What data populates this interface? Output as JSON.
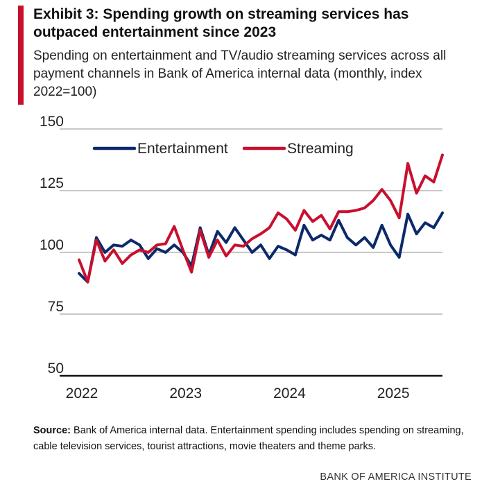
{
  "header": {
    "title": "Exhibit 3: Spending growth on streaming services has outpaced entertainment since 2023",
    "subtitle": "Spending on entertainment and TV/audio streaming services across all payment channels in Bank of America internal data (monthly, index 2022=100)"
  },
  "source": {
    "label": "Source:",
    "text": " Bank of America internal data. Entertainment spending includes spending on streaming, cable television services, tourist attractions, movie theaters and theme parks."
  },
  "footer": {
    "brand": "BANK OF AMERICA INSTITUTE"
  },
  "colors": {
    "accent": "#c8102e",
    "entertainment": "#0b2a6b",
    "streaming": "#c8102e",
    "grid": "#c8c8c8"
  },
  "chart_data": {
    "type": "line",
    "x_start": "2022-01",
    "x_ticks": [
      "2022",
      "2023",
      "2024",
      "2025"
    ],
    "y_ticks": [
      50,
      75,
      100,
      125,
      150
    ],
    "ylim": [
      50,
      150
    ],
    "legend": "top-left",
    "grid": true,
    "series": [
      {
        "name": "Entertainment",
        "color": "#0b2a6b",
        "values": [
          91.5,
          88,
          106,
          100,
          103,
          102.5,
          105,
          103,
          97.5,
          101.5,
          100,
          103,
          100,
          94.5,
          110,
          99,
          108.5,
          104,
          110,
          105,
          100,
          103,
          97.5,
          102.5,
          101,
          99,
          111,
          105,
          107,
          105,
          113,
          106,
          103,
          106,
          102,
          111,
          103,
          98,
          115.5,
          107.5,
          112,
          110,
          116
        ]
      },
      {
        "name": "Streaming",
        "color": "#c8102e",
        "values": [
          97,
          88,
          105,
          96.5,
          101,
          95.5,
          99,
          101,
          100,
          103,
          103.5,
          110.5,
          101,
          92,
          109,
          98,
          105,
          98.5,
          103,
          102.5,
          105.5,
          107.5,
          110,
          116,
          113.5,
          109,
          117,
          112.5,
          115,
          109.5,
          116.5,
          116.5,
          117,
          118,
          121,
          125.5,
          121,
          114,
          136,
          124,
          131,
          128.5,
          139.5
        ]
      }
    ]
  }
}
